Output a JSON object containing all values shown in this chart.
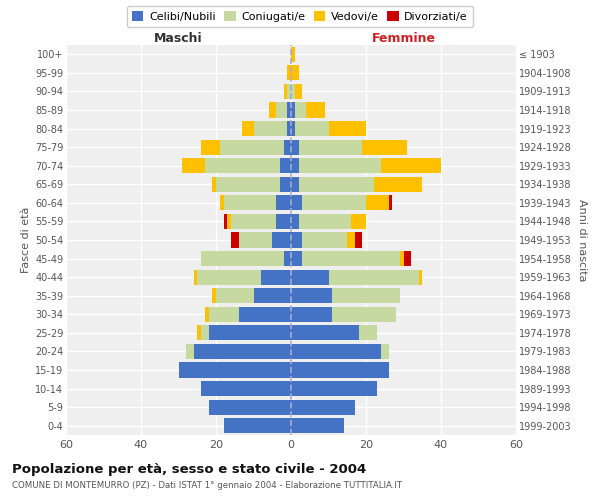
{
  "age_groups": [
    "0-4",
    "5-9",
    "10-14",
    "15-19",
    "20-24",
    "25-29",
    "30-34",
    "35-39",
    "40-44",
    "45-49",
    "50-54",
    "55-59",
    "60-64",
    "65-69",
    "70-74",
    "75-79",
    "80-84",
    "85-89",
    "90-94",
    "95-99",
    "100+"
  ],
  "birth_years": [
    "1999-2003",
    "1994-1998",
    "1989-1993",
    "1984-1988",
    "1979-1983",
    "1974-1978",
    "1969-1973",
    "1964-1968",
    "1959-1963",
    "1954-1958",
    "1949-1953",
    "1944-1948",
    "1939-1943",
    "1934-1938",
    "1929-1933",
    "1924-1928",
    "1919-1923",
    "1914-1918",
    "1909-1913",
    "1904-1908",
    "≤ 1903"
  ],
  "colors": {
    "celibi": "#4472c4",
    "coniugati": "#c5d9a0",
    "vedovi": "#ffc000",
    "divorziati": "#cc0000"
  },
  "maschi": {
    "celibi": [
      18,
      22,
      24,
      30,
      26,
      22,
      14,
      10,
      8,
      2,
      5,
      4,
      4,
      3,
      3,
      2,
      1,
      1,
      0,
      0,
      0
    ],
    "coniugati": [
      0,
      0,
      0,
      0,
      2,
      2,
      8,
      10,
      17,
      22,
      9,
      12,
      14,
      17,
      20,
      17,
      9,
      3,
      1,
      0,
      0
    ],
    "vedovi": [
      0,
      0,
      0,
      0,
      0,
      1,
      1,
      1,
      1,
      0,
      0,
      1,
      1,
      1,
      6,
      5,
      3,
      2,
      1,
      1,
      0
    ],
    "divorziati": [
      0,
      0,
      0,
      0,
      0,
      0,
      0,
      0,
      0,
      0,
      2,
      1,
      0,
      0,
      0,
      0,
      0,
      0,
      0,
      0,
      0
    ]
  },
  "femmine": {
    "celibi": [
      14,
      17,
      23,
      26,
      24,
      18,
      11,
      11,
      10,
      3,
      3,
      2,
      3,
      2,
      2,
      2,
      1,
      1,
      0,
      0,
      0
    ],
    "coniugati": [
      0,
      0,
      0,
      0,
      2,
      5,
      17,
      18,
      24,
      26,
      12,
      14,
      17,
      20,
      22,
      17,
      9,
      3,
      1,
      0,
      0
    ],
    "vedovi": [
      0,
      0,
      0,
      0,
      0,
      0,
      0,
      0,
      1,
      1,
      2,
      4,
      6,
      13,
      16,
      12,
      10,
      5,
      2,
      2,
      1
    ],
    "divorziati": [
      0,
      0,
      0,
      0,
      0,
      0,
      0,
      0,
      0,
      2,
      2,
      0,
      1,
      0,
      0,
      0,
      0,
      0,
      0,
      0,
      0
    ]
  },
  "title": "Popolazione per età, sesso e stato civile - 2004",
  "subtitle": "COMUNE DI MONTEMURRO (PZ) - Dati ISTAT 1° gennaio 2004 - Elaborazione TUTTITALIA.IT",
  "xlabel_left": "Maschi",
  "xlabel_right": "Femmine",
  "ylabel_left": "Fasce di età",
  "ylabel_right": "Anni di nascita",
  "xlim": 60,
  "legend_labels": [
    "Celibi/Nubili",
    "Coniugati/e",
    "Vedovi/e",
    "Divorziati/e"
  ],
  "background_color": "#ffffff",
  "plot_bg_color": "#efefef",
  "grid_color": "#ffffff"
}
